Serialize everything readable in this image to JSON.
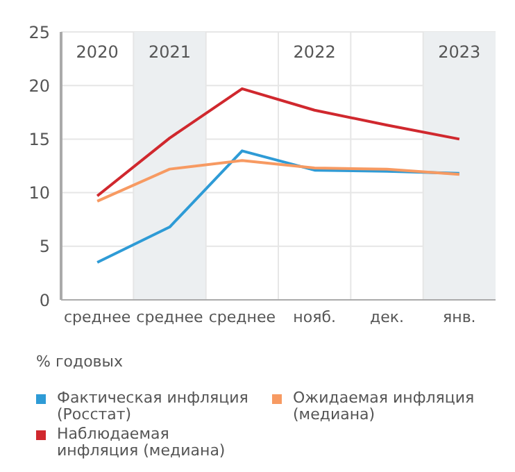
{
  "chart_data": {
    "type": "line",
    "ylabel": "% годовых",
    "categories": [
      "среднее",
      "среднее",
      "среднее",
      "нояб.",
      "дек.",
      "янв."
    ],
    "series": [
      {
        "name": "Фактическая инфляция (Росстат)",
        "color": "#2e9bd6",
        "values": [
          3.5,
          6.8,
          13.9,
          12.1,
          12.0,
          11.8
        ]
      },
      {
        "name": "Ожидаемая инфляция (медиана)",
        "color": "#f79a62",
        "values": [
          9.2,
          12.2,
          13.0,
          12.3,
          12.2,
          11.7
        ]
      },
      {
        "name": "Наблюдаемая инфляция (медиана)",
        "color": "#d0282e",
        "values": [
          9.7,
          15.1,
          19.7,
          17.7,
          16.3,
          15.0
        ]
      }
    ],
    "annotations": [
      "2020",
      "2021",
      "2022",
      "2023"
    ],
    "ylim": [
      0,
      25
    ],
    "yticks": [
      0,
      5,
      10,
      15,
      20,
      25
    ],
    "grid": true,
    "legend": "bottom",
    "marker": "none",
    "line_style": "solid"
  }
}
